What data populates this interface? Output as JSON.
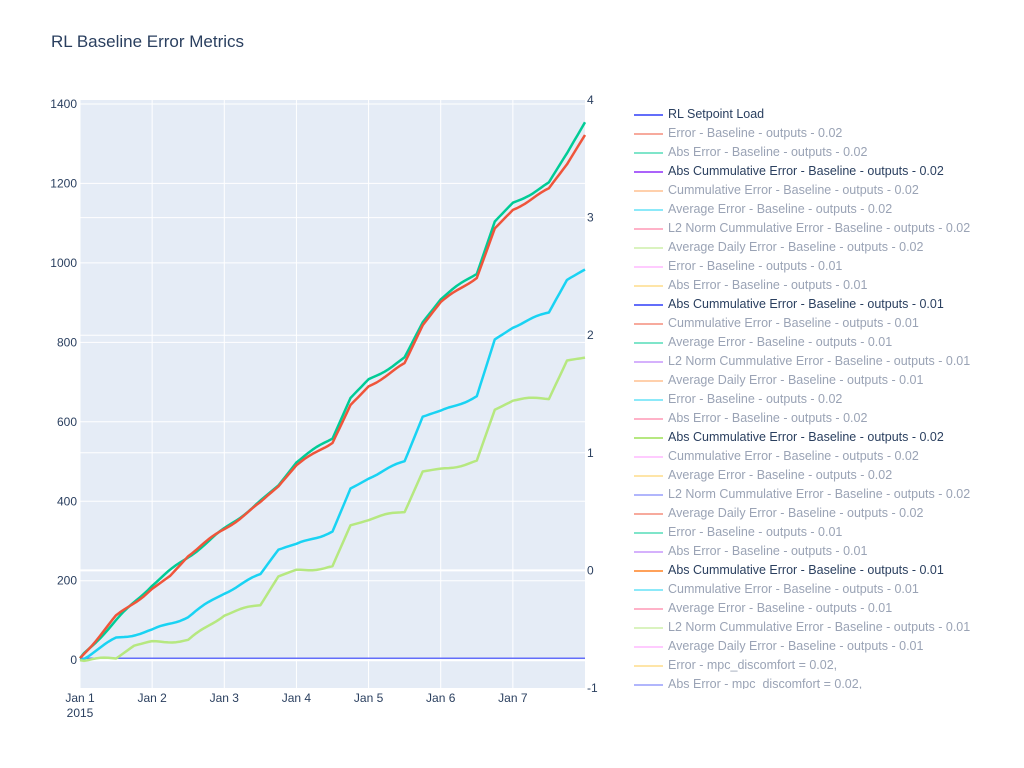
{
  "title": "RL Baseline Error Metrics",
  "colors": {
    "plot_bg": "#e5ecf6",
    "grid": "#ffffff",
    "text": "#2a3f5f"
  },
  "chart_data": {
    "type": "line",
    "title": "RL Baseline Error Metrics",
    "grid": true,
    "legend_position": "right",
    "x_axis": {
      "type": "date",
      "range": [
        "2015-01-01",
        "2015-01-08"
      ],
      "tick_values": [
        "2015-01-01",
        "2015-01-02",
        "2015-01-03",
        "2015-01-04",
        "2015-01-05",
        "2015-01-06",
        "2015-01-07"
      ],
      "tick_labels": [
        "Jan 1",
        "Jan 2",
        "Jan 3",
        "Jan 4",
        "Jan 5",
        "Jan 6",
        "Jan 7"
      ],
      "secondary_label": "2015"
    },
    "y_axis": {
      "range": [
        -70,
        1410
      ],
      "ticks": [
        0,
        200,
        400,
        600,
        800,
        1000,
        1200,
        1400
      ]
    },
    "y2_axis": {
      "range": [
        -1,
        4
      ],
      "ticks": [
        -1,
        0,
        1,
        2,
        3,
        4
      ]
    },
    "series": [
      {
        "name": "RL Setpoint Load",
        "color": "#636efa",
        "axis": "y",
        "x": [
          "2015-01-01",
          "2015-01-08"
        ],
        "y": [
          5,
          5
        ]
      },
      {
        "name": "Abs Cummulative Error - Baseline - outputs  - 0.02",
        "color": "#00cc96",
        "axis": "y",
        "x": [
          "2015-01-01",
          "2015-01-01 12:00",
          "2015-01-02",
          "2015-01-02 12:00",
          "2015-01-03",
          "2015-01-03 12:00",
          "2015-01-03 18:00",
          "2015-01-04",
          "2015-01-04 12:00",
          "2015-01-04 18:00",
          "2015-01-05",
          "2015-01-05 12:00",
          "2015-01-05 18:00",
          "2015-01-06",
          "2015-01-06 12:00",
          "2015-01-06 18:00",
          "2015-01-07",
          "2015-01-07 12:00",
          "2015-01-07 18:00",
          "2015-01-08"
        ],
        "y": [
          5,
          100,
          190,
          260,
          330,
          400,
          440,
          500,
          560,
          660,
          705,
          760,
          850,
          910,
          975,
          1105,
          1150,
          1200,
          1275,
          1355
        ]
      },
      {
        "name": "Error - Baseline - outputs  - 0.02",
        "color": "#ef553b",
        "axis": "y",
        "x": [
          "2015-01-01",
          "2015-01-01 12:00",
          "2015-01-02",
          "2015-01-02 06:00",
          "2015-01-02 12:00",
          "2015-01-03",
          "2015-01-03 12:00",
          "2015-01-03 18:00",
          "2015-01-04",
          "2015-01-04 12:00",
          "2015-01-04 18:00",
          "2015-01-05",
          "2015-01-05 12:00",
          "2015-01-05 18:00",
          "2015-01-06",
          "2015-01-06 12:00",
          "2015-01-06 18:00",
          "2015-01-07",
          "2015-01-07 12:00",
          "2015-01-07 18:00",
          "2015-01-08"
        ],
        "y": [
          5,
          110,
          180,
          215,
          265,
          330,
          395,
          435,
          490,
          550,
          645,
          690,
          745,
          840,
          900,
          965,
          1090,
          1135,
          1185,
          1245,
          1320
        ]
      },
      {
        "name": "Abs Cummulative Error - Baseline - outputs  - 0.01",
        "color": "#19d3f3",
        "axis": "y",
        "x": [
          "2015-01-01",
          "2015-01-01 12:00",
          "2015-01-02",
          "2015-01-02 12:00",
          "2015-01-03",
          "2015-01-03 12:00",
          "2015-01-03 18:00",
          "2015-01-04",
          "2015-01-04 12:00",
          "2015-01-04 18:00",
          "2015-01-05",
          "2015-01-05 12:00",
          "2015-01-05 18:00",
          "2015-01-06",
          "2015-01-06 12:00",
          "2015-01-06 18:00",
          "2015-01-07",
          "2015-01-07 12:00",
          "2015-01-07 18:00",
          "2015-01-08"
        ],
        "y": [
          0,
          55,
          75,
          110,
          170,
          215,
          275,
          290,
          325,
          435,
          460,
          500,
          610,
          625,
          665,
          810,
          840,
          875,
          955,
          980
        ]
      },
      {
        "name": "Abs Cummulative Error - Baseline - outputs  - 0.02",
        "color": "#b6e880",
        "axis": "y",
        "x": [
          "2015-01-01",
          "2015-01-01 12:00",
          "2015-01-01 18:00",
          "2015-01-02",
          "2015-01-02 12:00",
          "2015-01-03",
          "2015-01-03 12:00",
          "2015-01-03 18:00",
          "2015-01-04",
          "2015-01-04 12:00",
          "2015-01-04 18:00",
          "2015-01-05",
          "2015-01-05 12:00",
          "2015-01-05 18:00",
          "2015-01-06",
          "2015-01-06 12:00",
          "2015-01-06 18:00",
          "2015-01-07",
          "2015-01-07 12:00",
          "2015-01-07 18:00",
          "2015-01-08"
        ],
        "y": [
          0,
          5,
          35,
          45,
          50,
          115,
          140,
          210,
          225,
          235,
          340,
          355,
          375,
          475,
          480,
          500,
          630,
          655,
          660,
          755,
          760
        ]
      }
    ]
  },
  "legend": {
    "items": [
      {
        "label": "RL Setpoint Load",
        "color": "#636efa",
        "visible": true
      },
      {
        "label": "Error - Baseline - outputs  - 0.02",
        "color": "#ef553b",
        "visible": false
      },
      {
        "label": "Abs Error - Baseline - outputs  - 0.02",
        "color": "#00cc96",
        "visible": false
      },
      {
        "label": "Abs Cummulative Error - Baseline - outputs  - 0.02",
        "color": "#ab63fa",
        "visible": true
      },
      {
        "label": "Cummulative Error - Baseline - outputs  - 0.02",
        "color": "#ffa15a",
        "visible": false
      },
      {
        "label": "Average Error - Baseline - outputs  - 0.02",
        "color": "#19d3f3",
        "visible": false
      },
      {
        "label": "L2 Norm Cummulative Error - Baseline - outputs  - 0.02",
        "color": "#ff6692",
        "visible": false
      },
      {
        "label": "Average Daily Error - Baseline - outputs  - 0.02",
        "color": "#b6e880",
        "visible": false
      },
      {
        "label": "Error - Baseline - outputs  - 0.01",
        "color": "#ff97ff",
        "visible": false
      },
      {
        "label": "Abs Error - Baseline - outputs  - 0.01",
        "color": "#fecb52",
        "visible": false
      },
      {
        "label": "Abs Cummulative Error - Baseline - outputs  - 0.01",
        "color": "#636efa",
        "visible": true
      },
      {
        "label": "Cummulative Error - Baseline - outputs  - 0.01",
        "color": "#ef553b",
        "visible": false
      },
      {
        "label": "Average Error - Baseline - outputs  - 0.01",
        "color": "#00cc96",
        "visible": false
      },
      {
        "label": "L2 Norm Cummulative Error - Baseline - outputs  - 0.01",
        "color": "#ab63fa",
        "visible": false
      },
      {
        "label": "Average Daily Error - Baseline - outputs  - 0.01",
        "color": "#ffa15a",
        "visible": false
      },
      {
        "label": "Error - Baseline - outputs  - 0.02",
        "color": "#19d3f3",
        "visible": false
      },
      {
        "label": "Abs Error - Baseline - outputs  - 0.02",
        "color": "#ff6692",
        "visible": false
      },
      {
        "label": "Abs Cummulative Error - Baseline - outputs  - 0.02",
        "color": "#b6e880",
        "visible": true
      },
      {
        "label": "Cummulative Error - Baseline - outputs  - 0.02",
        "color": "#ff97ff",
        "visible": false
      },
      {
        "label": "Average Error - Baseline - outputs  - 0.02",
        "color": "#fecb52",
        "visible": false
      },
      {
        "label": "L2 Norm Cummulative Error - Baseline - outputs  - 0.02",
        "color": "#636efa",
        "visible": false
      },
      {
        "label": "Average Daily Error - Baseline - outputs  - 0.02",
        "color": "#ef553b",
        "visible": false
      },
      {
        "label": "Error - Baseline - outputs  - 0.01",
        "color": "#00cc96",
        "visible": false
      },
      {
        "label": "Abs Error - Baseline - outputs  - 0.01",
        "color": "#ab63fa",
        "visible": false
      },
      {
        "label": "Abs Cummulative Error - Baseline - outputs  - 0.01",
        "color": "#ffa15a",
        "visible": true
      },
      {
        "label": "Cummulative Error - Baseline - outputs  - 0.01",
        "color": "#19d3f3",
        "visible": false
      },
      {
        "label": "Average Error - Baseline - outputs  - 0.01",
        "color": "#ff6692",
        "visible": false
      },
      {
        "label": "L2 Norm Cummulative Error - Baseline - outputs  - 0.01",
        "color": "#b6e880",
        "visible": false
      },
      {
        "label": "Average Daily Error - Baseline - outputs  - 0.01",
        "color": "#ff97ff",
        "visible": false
      },
      {
        "label": "Error - mpc_discomfort = 0.02,",
        "color": "#fecb52",
        "visible": false
      },
      {
        "label": "Abs Error - mpc_discomfort = 0.02,",
        "color": "#636efa",
        "visible": false
      }
    ]
  }
}
